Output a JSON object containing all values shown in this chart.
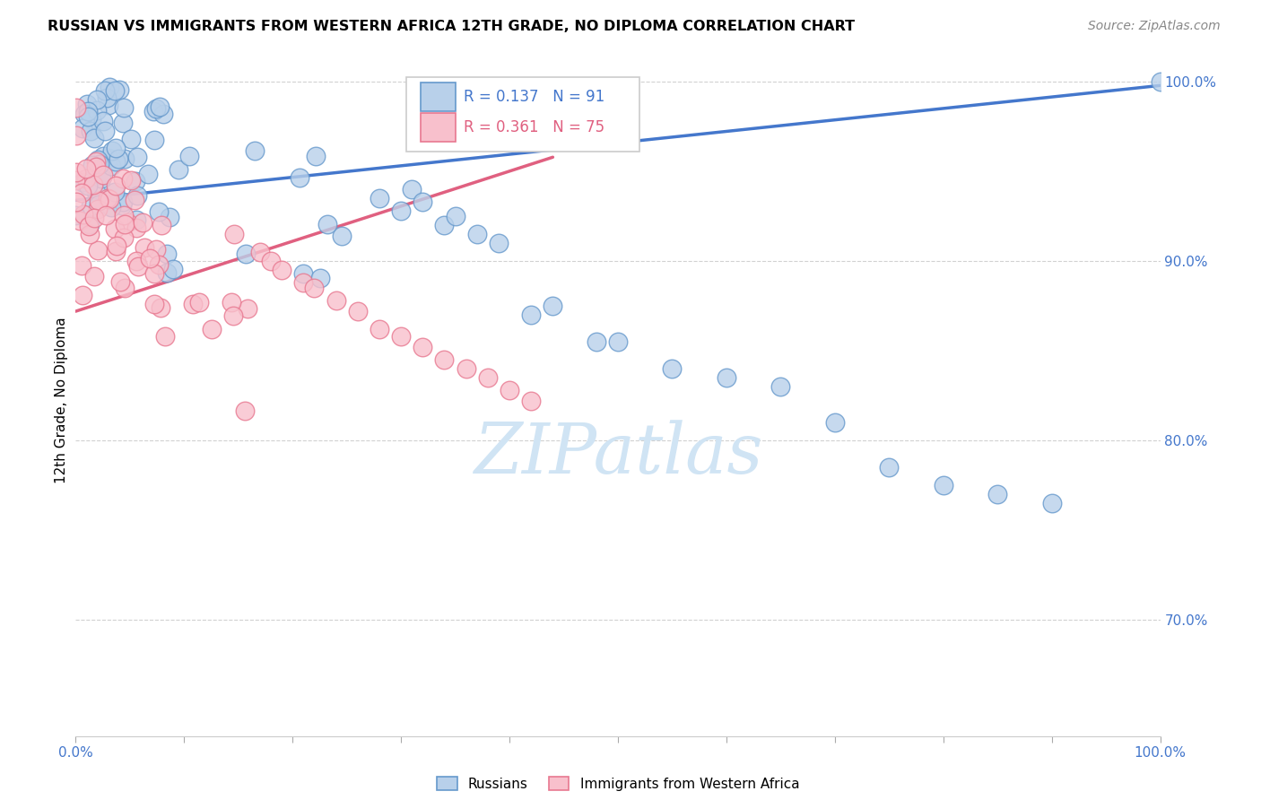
{
  "title": "RUSSIAN VS IMMIGRANTS FROM WESTERN AFRICA 12TH GRADE, NO DIPLOMA CORRELATION CHART",
  "source": "Source: ZipAtlas.com",
  "ylabel": "12th Grade, No Diploma",
  "xmin": 0.0,
  "xmax": 1.0,
  "ymin": 0.635,
  "ymax": 1.01,
  "yticks": [
    0.7,
    0.8,
    0.9,
    1.0
  ],
  "ytick_labels": [
    "70.0%",
    "80.0%",
    "90.0%",
    "100.0%"
  ],
  "xtick_labels": [
    "0.0%",
    "",
    "",
    "",
    "",
    "",
    "",
    "",
    "",
    "",
    "100.0%"
  ],
  "legend_blue_label": "R = 0.137   N = 91",
  "legend_pink_label": "R = 0.361   N = 75",
  "legend_russians": "Russians",
  "legend_immigrants": "Immigrants from Western Africa",
  "blue_face_color": "#b8d0ea",
  "blue_edge_color": "#6699cc",
  "pink_face_color": "#f8c0cc",
  "pink_edge_color": "#e87890",
  "blue_line_color": "#4477cc",
  "pink_line_color": "#e06080",
  "watermark_color": "#d0e4f4",
  "blue_line_x": [
    0.0,
    1.0
  ],
  "blue_line_y": [
    0.934,
    0.998
  ],
  "pink_line_x": [
    0.0,
    0.44
  ],
  "pink_line_y": [
    0.872,
    0.958
  ]
}
